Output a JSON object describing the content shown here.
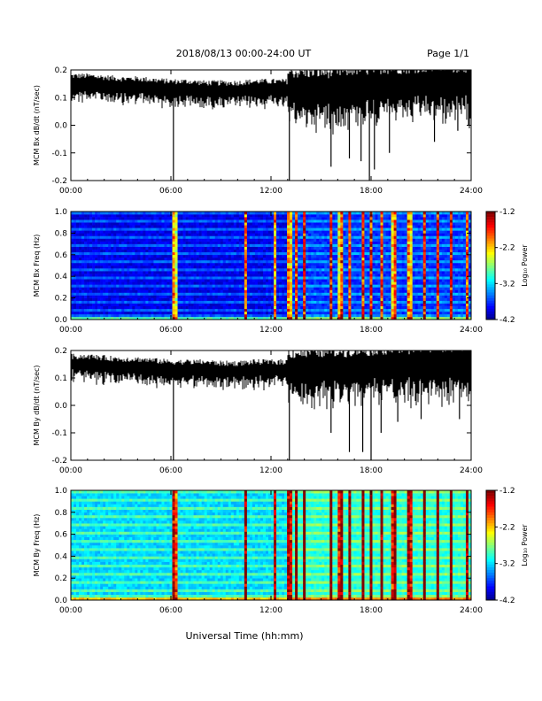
{
  "header": {
    "title": "2018/08/13  00:00-24:00 UT",
    "page": "Page 1/1"
  },
  "footer": {
    "xlabel": "Universal Time (hh:mm)"
  },
  "colors": {
    "trace": "#000000",
    "background": "#ffffff"
  },
  "chart_data": [
    {
      "type": "line",
      "ylabel": "MCM Bx dB/dt (nT/sec)",
      "xlim": [
        0,
        24
      ],
      "ylim": [
        -0.2,
        0.2
      ],
      "x_ticks": [
        "00:00",
        "06:00",
        "12:00",
        "18:00",
        "24:00"
      ],
      "y_ticks": [
        "0.2",
        "0.1",
        "0.0",
        "-0.1",
        "-0.2"
      ],
      "series": [
        {
          "x": [
            0,
            1,
            2,
            3,
            4,
            5,
            6,
            6.5,
            7,
            8,
            9,
            10,
            11,
            12,
            13,
            13.3,
            14,
            15,
            15.8,
            16.5,
            17,
            17.5,
            18,
            18.3,
            19,
            20,
            21,
            22,
            23,
            24
          ],
          "y": [
            0.15,
            0.15,
            0.145,
            0.14,
            0.14,
            0.135,
            0.13,
            0.13,
            0.13,
            0.125,
            0.125,
            0.125,
            0.13,
            0.13,
            0.13,
            0.13,
            0.13,
            0.13,
            0.13,
            0.135,
            0.14,
            0.14,
            0.14,
            0.145,
            0.145,
            0.145,
            0.15,
            0.15,
            0.15,
            0.15
          ],
          "spikes": [
            [
              6.15,
              -0.2
            ],
            [
              13.1,
              -0.2
            ],
            [
              15.6,
              -0.15
            ],
            [
              16.7,
              -0.12
            ],
            [
              17.4,
              -0.13
            ],
            [
              17.9,
              -0.2
            ],
            [
              18.2,
              -0.16
            ],
            [
              19.1,
              -0.1
            ],
            [
              21.8,
              -0.06
            ],
            [
              23.2,
              -0.02
            ]
          ]
        }
      ]
    },
    {
      "type": "heatmap",
      "ylabel": "MCM Bx Freq (Hz)",
      "xlim": [
        0,
        24
      ],
      "ylim": [
        0,
        1
      ],
      "x_ticks": [
        "00:00",
        "06:00",
        "12:00",
        "18:00",
        "24:00"
      ],
      "y_ticks": [
        "1.0",
        "0.8",
        "0.6",
        "0.4",
        "0.2",
        "0.0"
      ],
      "colorbar": {
        "label": "Log₁₀ Power",
        "ticks": [
          "-1.2",
          "-2.2",
          "-3.2",
          "-4.2"
        ],
        "range": [
          -4.2,
          -1.2
        ]
      },
      "base_level": -3.9,
      "broadband_times": [
        6.2,
        10.5,
        12.2,
        13.1,
        13.5,
        14.0,
        15.6,
        16.2,
        16.7,
        17.5,
        18.0,
        18.6,
        19.4,
        20.3,
        21.2,
        22.0,
        22.8,
        23.8
      ]
    },
    {
      "type": "line",
      "ylabel": "MCM By dB/dt (nT/sec)",
      "xlim": [
        0,
        24
      ],
      "ylim": [
        -0.2,
        0.2
      ],
      "x_ticks": [
        "00:00",
        "06:00",
        "12:00",
        "18:00",
        "24:00"
      ],
      "y_ticks": [
        "0.2",
        "0.1",
        "0.0",
        "-0.1",
        "-0.2"
      ],
      "series": [
        {
          "x": [
            0,
            1,
            2,
            3,
            4,
            5,
            6,
            6.5,
            7,
            8,
            9,
            10,
            11,
            12,
            13,
            13.3,
            14,
            15,
            15.8,
            16.5,
            17,
            17.5,
            18,
            18.3,
            19,
            20,
            21,
            22,
            23,
            24
          ],
          "y": [
            0.15,
            0.15,
            0.145,
            0.14,
            0.14,
            0.135,
            0.13,
            0.13,
            0.13,
            0.13,
            0.125,
            0.125,
            0.13,
            0.13,
            0.13,
            0.13,
            0.13,
            0.135,
            0.135,
            0.135,
            0.14,
            0.14,
            0.14,
            0.145,
            0.145,
            0.145,
            0.15,
            0.15,
            0.15,
            0.15
          ],
          "spikes": [
            [
              6.15,
              -0.2
            ],
            [
              13.1,
              -0.2
            ],
            [
              15.6,
              -0.1
            ],
            [
              16.7,
              -0.17
            ],
            [
              17.5,
              -0.17
            ],
            [
              18.0,
              -0.2
            ],
            [
              18.6,
              -0.1
            ],
            [
              19.6,
              -0.06
            ],
            [
              21.0,
              -0.05
            ],
            [
              23.3,
              -0.05
            ]
          ]
        }
      ]
    },
    {
      "type": "heatmap",
      "ylabel": "MCM By Freq (Hz)",
      "xlim": [
        0,
        24
      ],
      "ylim": [
        0,
        1
      ],
      "x_ticks": [
        "00:00",
        "06:00",
        "12:00",
        "18:00",
        "24:00"
      ],
      "y_ticks": [
        "1.0",
        "0.8",
        "0.6",
        "0.4",
        "0.2",
        "0.0"
      ],
      "colorbar": {
        "label": "Log₁₀ Power",
        "ticks": [
          "-1.2",
          "-2.2",
          "-3.2",
          "-4.2"
        ],
        "range": [
          -4.2,
          -1.2
        ]
      },
      "base_level": -3.2,
      "broadband_times": [
        6.2,
        10.5,
        12.2,
        13.1,
        13.5,
        14.0,
        15.6,
        16.2,
        16.7,
        17.5,
        18.0,
        18.6,
        19.4,
        20.3,
        21.2,
        22.0,
        22.8,
        23.8
      ]
    }
  ]
}
